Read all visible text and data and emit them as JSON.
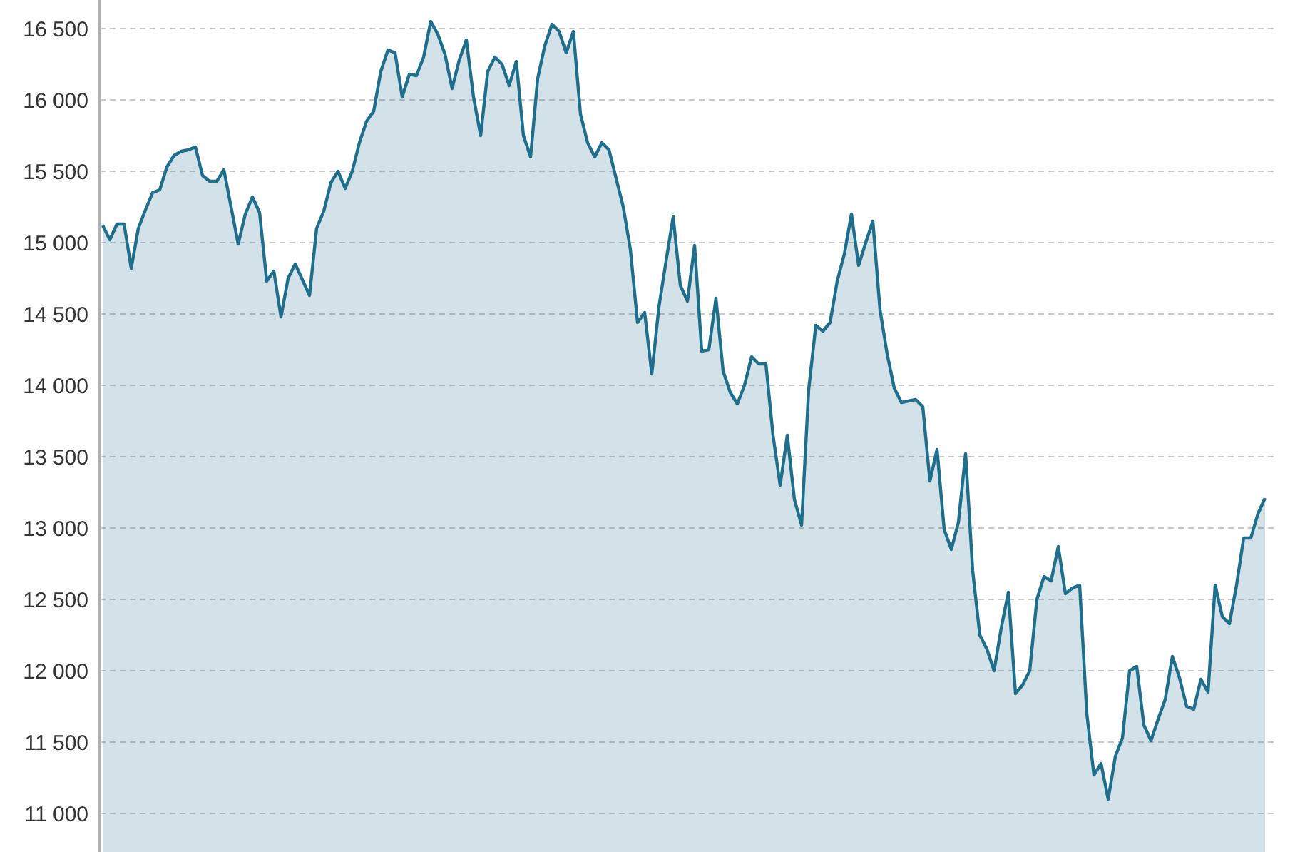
{
  "chart_data": {
    "type": "area",
    "categories": [
      null,
      null,
      null,
      null,
      null,
      null,
      null,
      null,
      null,
      null,
      null,
      null,
      null,
      null,
      null,
      null,
      null,
      null,
      null,
      null,
      null,
      null,
      null,
      null,
      null,
      null,
      null,
      null,
      null,
      null,
      null,
      null,
      null,
      null,
      null,
      null,
      null,
      null,
      null,
      null,
      null,
      null,
      null,
      null,
      null,
      null,
      null,
      null,
      null,
      null,
      null,
      null,
      null,
      null,
      null,
      null,
      null,
      null,
      null,
      null,
      null,
      null,
      null,
      null,
      null,
      null,
      null,
      null,
      null,
      null,
      null,
      null,
      null,
      null,
      null,
      null,
      null,
      null,
      null,
      null,
      null,
      null,
      null,
      null,
      null,
      null,
      null,
      null,
      null,
      null,
      null,
      null,
      null,
      null,
      null,
      null,
      null,
      null,
      null,
      null,
      null,
      null,
      null,
      null,
      null,
      null,
      null,
      null,
      null,
      null,
      null,
      null,
      null,
      null,
      null,
      null,
      null,
      null,
      null,
      null,
      null,
      null,
      null,
      null,
      null,
      null,
      null,
      null,
      null,
      null,
      null,
      null,
      null,
      null,
      null,
      null,
      null,
      null,
      null,
      null,
      null,
      null,
      null,
      null,
      null,
      null,
      null,
      null,
      null,
      null,
      null,
      null,
      null,
      null,
      null,
      null,
      null,
      null,
      null,
      null,
      null,
      null,
      null,
      null
    ],
    "series": [
      {
        "color": "#1f6e8c",
        "values": [
          15120,
          15020,
          15130,
          15130,
          14820,
          15100,
          15230,
          15350,
          15370,
          15530,
          15610,
          15640,
          15650,
          15670,
          15470,
          15430,
          15430,
          15510,
          15250,
          14990,
          15200,
          15320,
          15210,
          14730,
          14800,
          14480,
          14750,
          14850,
          14740,
          14630,
          15100,
          15220,
          15420,
          15500,
          15380,
          15500,
          15700,
          15850,
          15920,
          16200,
          16350,
          16330,
          16020,
          16180,
          16170,
          16300,
          16550,
          16460,
          16320,
          16080,
          16280,
          16420,
          16020,
          15750,
          16200,
          16300,
          16250,
          16100,
          16270,
          15750,
          15600,
          16150,
          16380,
          16530,
          16480,
          16330,
          16480,
          15900,
          15700,
          15600,
          15700,
          15650,
          15450,
          15250,
          14950,
          14440,
          14510,
          14080,
          14550,
          14870,
          15180,
          14700,
          14590,
          14980,
          14240,
          14250,
          14610,
          14100,
          13950,
          13870,
          14000,
          14200,
          14150,
          14150,
          13650,
          13300,
          13650,
          13200,
          13020,
          13970,
          14420,
          14380,
          14440,
          14730,
          14920,
          15200,
          14840,
          15000,
          15150,
          14530,
          14220,
          13980,
          13880,
          13890,
          13900,
          13850,
          13330,
          13550,
          12990,
          12850,
          13040,
          13520,
          12700,
          12250,
          12150,
          12000,
          12300,
          12550,
          11840,
          11900,
          12000,
          12500,
          12660,
          12630,
          12870,
          12540,
          12580,
          12600,
          11700,
          11270,
          11350,
          11100,
          11400,
          11530,
          12000,
          12030,
          11620,
          11510,
          11660,
          11800,
          12100,
          11950,
          11750,
          11730,
          11940,
          11850,
          12600,
          12380,
          12330,
          12600,
          12930,
          12930,
          13100,
          13210
        ]
      }
    ],
    "ylim": [
      10730,
      16700
    ],
    "yticks": [
      {
        "value": 11000,
        "label": "11 000"
      },
      {
        "value": 11500,
        "label": "11 500"
      },
      {
        "value": 12000,
        "label": "12 000"
      },
      {
        "value": 12500,
        "label": "12 500"
      },
      {
        "value": 13000,
        "label": "13 000"
      },
      {
        "value": 13500,
        "label": "13 500"
      },
      {
        "value": 14000,
        "label": "14 000"
      },
      {
        "value": 14500,
        "label": "14 500"
      },
      {
        "value": 15000,
        "label": "15 000"
      },
      {
        "value": 15500,
        "label": "15 500"
      },
      {
        "value": 16000,
        "label": "16 000"
      },
      {
        "value": 16500,
        "label": "16 500"
      }
    ],
    "grid": "y"
  }
}
